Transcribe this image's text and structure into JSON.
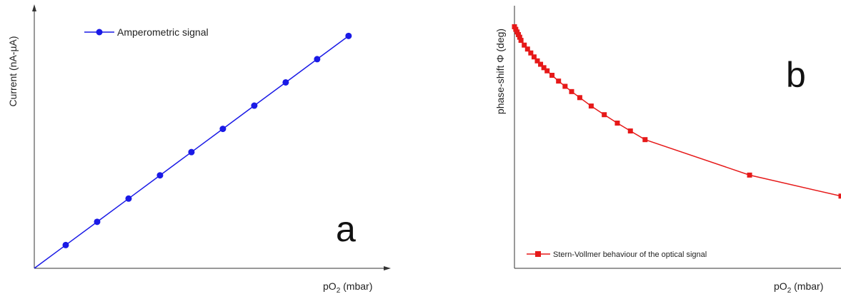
{
  "chart_data": [
    {
      "id": "a",
      "type": "line",
      "panel_letter": "a",
      "xlabel_main": "pO",
      "xlabel_sub": "2",
      "xlabel_unit": " (mbar)",
      "ylabel": "Current (nA-µA)",
      "legend": {
        "label": "Amperometric signal",
        "placement": "top-left"
      },
      "color": "#1a1ae6",
      "marker": "circle",
      "xlim": [
        0,
        11.3
      ],
      "ylim": [
        0,
        11.3
      ],
      "series": [
        {
          "name": "Amperometric signal",
          "x": [
            0,
            1,
            2,
            3,
            4,
            5,
            6,
            7,
            8,
            9,
            10
          ],
          "y": [
            0,
            1,
            2,
            3,
            4,
            5,
            6,
            7,
            8,
            9,
            10
          ]
        }
      ]
    },
    {
      "id": "b",
      "type": "line",
      "panel_letter": "b",
      "xlabel_main": "pO",
      "xlabel_sub": "2",
      "xlabel_unit": " (mbar)",
      "ylabel": "phase-shift Φ (deg)",
      "legend": {
        "label": "Stern-Vollmer behaviour of the optical signal",
        "placement": "bottom-left"
      },
      "color": "#e61919",
      "marker": "square",
      "xlim": [
        0,
        1
      ],
      "ylim": [
        0,
        1
      ],
      "series": [
        {
          "name": "Stern-Vollmer behaviour of the optical signal",
          "x": [
            0.0,
            0.004,
            0.008,
            0.012,
            0.016,
            0.02,
            0.03,
            0.04,
            0.05,
            0.06,
            0.07,
            0.08,
            0.09,
            0.1,
            0.115,
            0.135,
            0.155,
            0.175,
            0.2,
            0.235,
            0.275,
            0.315,
            0.355,
            0.4,
            0.72,
            1.0
          ],
          "y": [
            0.92,
            0.91,
            0.9,
            0.89,
            0.88,
            0.868,
            0.85,
            0.835,
            0.82,
            0.805,
            0.79,
            0.777,
            0.764,
            0.752,
            0.735,
            0.713,
            0.693,
            0.673,
            0.65,
            0.618,
            0.585,
            0.553,
            0.523,
            0.49,
            0.355,
            0.275
          ]
        }
      ]
    }
  ]
}
